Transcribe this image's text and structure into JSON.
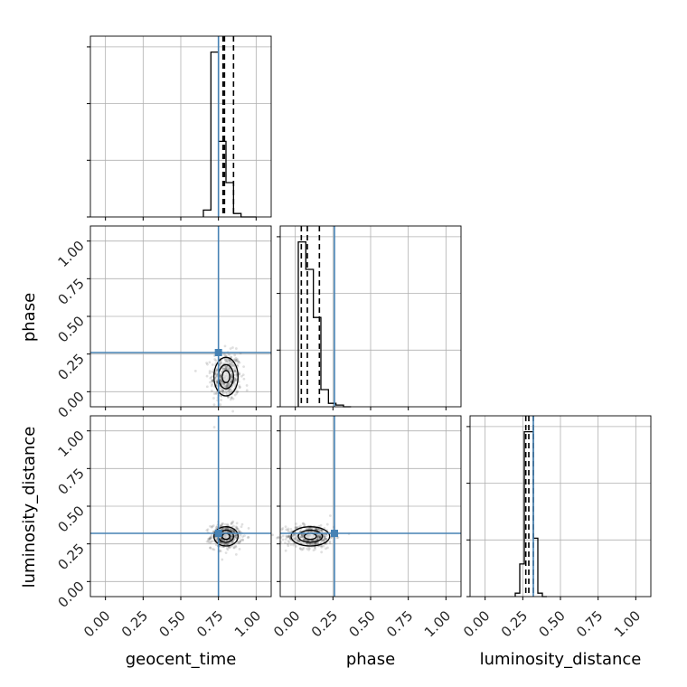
{
  "chart_data": {
    "type": "corner",
    "parameters": [
      "geocent_time",
      "phase",
      "luminosity_distance"
    ],
    "axis_range": [
      -0.1,
      1.1
    ],
    "ticks": [
      0.0,
      0.25,
      0.5,
      0.75,
      1.0
    ],
    "tick_labels": [
      "0.00",
      "0.25",
      "0.50",
      "0.75",
      "1.00"
    ],
    "grid": true,
    "truths": {
      "geocent_time": 0.75,
      "phase": 0.26,
      "luminosity_distance": 0.32
    },
    "truth_color": "#4682b4",
    "histograms": {
      "geocent_time": {
        "edges": [
          0.65,
          0.7,
          0.75,
          0.8,
          0.85,
          0.9,
          0.95,
          1.0
        ],
        "heights": [
          0.04,
          0.96,
          0.44,
          0.2,
          0.02,
          0.0,
          0.0
        ],
        "quantiles": [
          0.78,
          0.79,
          0.85
        ]
      },
      "phase": {
        "edges": [
          0.02,
          0.07,
          0.12,
          0.17,
          0.22,
          0.27,
          0.32,
          0.37
        ],
        "heights": [
          0.96,
          0.8,
          0.52,
          0.1,
          0.02,
          0.01,
          0.0
        ],
        "quantiles": [
          0.04,
          0.08,
          0.16
        ]
      },
      "luminosity_distance": {
        "edges": [
          0.2,
          0.23,
          0.26,
          0.29,
          0.32,
          0.35,
          0.38,
          0.41
        ],
        "heights": [
          0.02,
          0.19,
          0.96,
          0.96,
          0.34,
          0.02,
          0.0
        ],
        "quantiles": [
          0.27,
          0.29,
          0.32
        ]
      }
    },
    "scatter": {
      "phase_vs_geocent_time": {
        "center": [
          0.8,
          0.1
        ],
        "spread": [
          0.05,
          0.08
        ],
        "n": 420
      },
      "luminosity_distance_vs_geocent_time": {
        "center": [
          0.8,
          0.3
        ],
        "spread": [
          0.05,
          0.04
        ],
        "n": 420
      },
      "luminosity_distance_vs_phase": {
        "center": [
          0.1,
          0.3
        ],
        "spread": [
          0.08,
          0.04
        ],
        "n": 420
      }
    }
  }
}
